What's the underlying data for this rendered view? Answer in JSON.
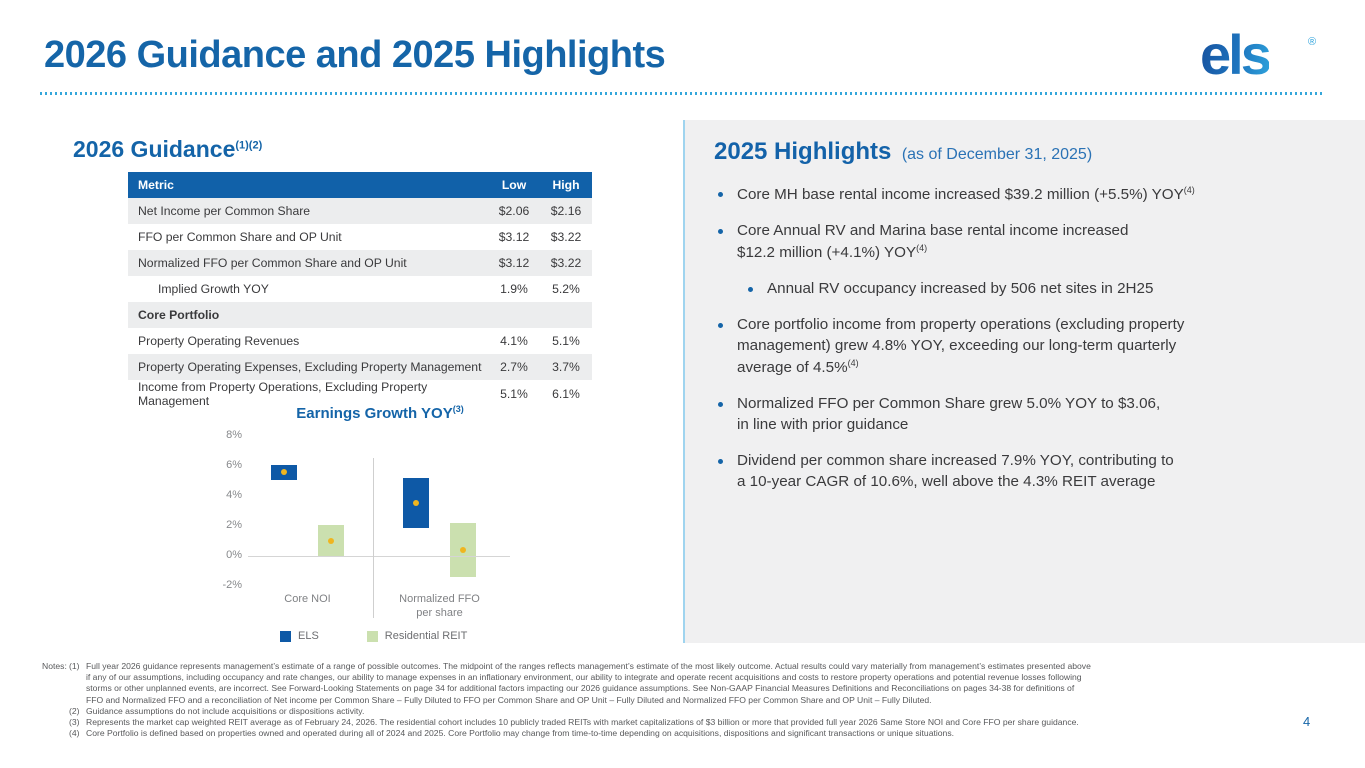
{
  "slide": {
    "title": "2026 Guidance and 2025 Highlights",
    "logo_text": "els",
    "logo_reg": "®",
    "page_number": "4"
  },
  "guidance": {
    "heading": "2026 Guidance",
    "heading_sup": "(1)(2)",
    "table": {
      "headers": [
        "Metric",
        "Low",
        "High"
      ],
      "rows": [
        {
          "metric": "Net Income per Common Share",
          "low": "$2.06",
          "high": "$2.16",
          "indent": false,
          "section": false
        },
        {
          "metric": "FFO per Common Share and OP Unit",
          "low": "$3.12",
          "high": "$3.22",
          "indent": false,
          "section": false
        },
        {
          "metric": "Normalized FFO per Common Share and OP Unit",
          "low": "$3.12",
          "high": "$3.22",
          "indent": false,
          "section": false
        },
        {
          "metric": "Implied Growth YOY",
          "low": "1.9%",
          "high": "5.2%",
          "indent": true,
          "section": false
        },
        {
          "metric": "Core Portfolio",
          "low": "",
          "high": "",
          "indent": false,
          "section": true
        },
        {
          "metric": "Property Operating Revenues",
          "low": "4.1%",
          "high": "5.1%",
          "indent": false,
          "section": false
        },
        {
          "metric": "Property Operating Expenses, Excluding Property Management",
          "low": "2.7%",
          "high": "3.7%",
          "indent": false,
          "section": false
        },
        {
          "metric": "Income from Property Operations, Excluding Property Management",
          "low": "5.1%",
          "high": "6.1%",
          "indent": false,
          "section": false
        }
      ]
    }
  },
  "chart_data": {
    "type": "bar",
    "variant": "floating-range-bars-with-midpoint-markers",
    "title": "Earnings Growth YOY",
    "title_sup": "(3)",
    "categories": [
      "Core NOI",
      "Normalized FFO\nper share"
    ],
    "series": [
      {
        "name": "ELS",
        "color": "#0E59A6",
        "ranges": [
          {
            "low": 5.1,
            "high": 6.1,
            "mid": 5.6
          },
          {
            "low": 1.9,
            "high": 5.2,
            "mid": 3.55
          }
        ]
      },
      {
        "name": "Residential REIT",
        "color": "#CBE0AF",
        "ranges": [
          {
            "low": 0.0,
            "high": 2.1,
            "mid": 1.0
          },
          {
            "low": -1.4,
            "high": 2.2,
            "mid": 0.4
          }
        ]
      }
    ],
    "midpoint_marker_color": "#EFB51F",
    "y_ticks": [
      "8%",
      "6%",
      "4%",
      "2%",
      "0%",
      "-2%"
    ],
    "ylim": [
      -2,
      8
    ],
    "grid": "zero-line-only",
    "legend_position": "bottom"
  },
  "highlights": {
    "heading": "2025 Highlights",
    "subtitle": "(as of December 31, 2025)",
    "bullets": [
      {
        "level": 1,
        "text": "Core MH base rental income increased $39.2 million (+5.5%) YOY",
        "sup": "(4)"
      },
      {
        "level": 1,
        "text": "Core Annual RV and Marina base rental income increased\n$12.2 million (+4.1%) YOY",
        "sup": "(4)"
      },
      {
        "level": 2,
        "text": "Annual RV occupancy increased by 506 net sites in 2H25",
        "sup": ""
      },
      {
        "level": 1,
        "text": "Core portfolio income from property operations (excluding property\nmanagement) grew 4.8% YOY, exceeding our long-term quarterly\naverage of 4.5%",
        "sup": "(4)"
      },
      {
        "level": 1,
        "text": "Normalized FFO per Common Share grew 5.0% YOY to $3.06,\nin line with prior guidance",
        "sup": ""
      },
      {
        "level": 1,
        "text": "Dividend per common share increased 7.9% YOY, contributing to\na 10-year CAGR of 10.6%, well above the 4.3% REIT average",
        "sup": ""
      }
    ]
  },
  "notes": {
    "label": "Notes:",
    "items": [
      {
        "num": "(1)",
        "text": "Full year 2026 guidance represents management’s estimate of a range of possible outcomes. The midpoint of the ranges reflects management’s estimate of the most likely outcome. Actual results could vary materially from management’s estimates presented above\nif any of our assumptions, including occupancy and rate changes, our ability to manage expenses in an inflationary environment, our ability to integrate and operate recent acquisitions and costs to restore property operations and potential revenue losses following\nstorms or other unplanned events, are incorrect. See Forward-Looking Statements on page 34 for additional factors impacting our 2026 guidance assumptions. See Non-GAAP Financial Measures Definitions and Reconciliations on pages 34-38 for definitions of\nFFO and Normalized FFO and a reconciliation of Net income per Common Share – Fully Diluted to FFO per Common Share and OP Unit – Fully Diluted and Normalized FFO per Common Share and OP Unit – Fully Diluted."
      },
      {
        "num": "(2)",
        "text": "Guidance assumptions do not include acquisitions or dispositions activity."
      },
      {
        "num": "(3)",
        "text": "Represents the market cap weighted REIT average as of February 24, 2026. The residential cohort includes 10 publicly traded REITs with market capitalizations of $3 billion or more that provided full year 2026 Same Store NOI and Core FFO per share guidance."
      },
      {
        "num": "(4)",
        "text": "Core Portfolio is defined based on properties owned and operated during all of 2024 and 2025. Core Portfolio may change from time-to-time depending on acquisitions, dispositions and significant transactions or unique situations."
      }
    ]
  }
}
